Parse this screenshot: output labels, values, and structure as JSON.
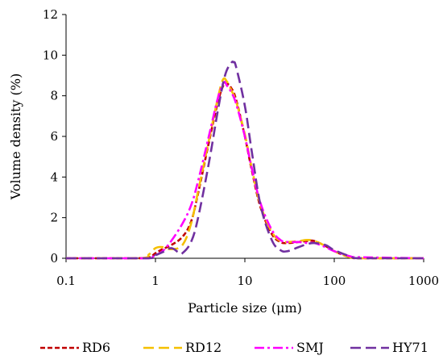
{
  "chart_data": {
    "type": "line",
    "title": "",
    "xlabel": "Particle size (μm)",
    "ylabel": "Volume density (%)",
    "x_scale": "log",
    "xlim": [
      0.1,
      1000
    ],
    "ylim": [
      0,
      12
    ],
    "x_ticks": [
      "0.1",
      "1",
      "10",
      "100",
      "1000"
    ],
    "y_ticks": [
      "0",
      "2",
      "4",
      "6",
      "8",
      "10",
      "12"
    ],
    "grid": false,
    "legend_position": "bottom",
    "series": [
      {
        "name": "RD6",
        "color": "#c00000",
        "dash": "dashed-short",
        "x": [
          0.1,
          0.6,
          0.85,
          1.0,
          1.2,
          1.5,
          2.0,
          2.5,
          3.0,
          4.0,
          5.0,
          5.8,
          6.3,
          7.0,
          8.0,
          10.0,
          12.0,
          15.0,
          20.0,
          25.0,
          30.0,
          40.0,
          50.0,
          60.0,
          80.0,
          100.0,
          150.0,
          200.0,
          1000.0
        ],
        "y": [
          0,
          0,
          0.05,
          0.25,
          0.45,
          0.65,
          1.05,
          1.8,
          3.2,
          5.8,
          7.7,
          8.55,
          8.6,
          8.4,
          7.8,
          6.0,
          4.3,
          2.5,
          1.2,
          0.8,
          0.75,
          0.8,
          0.85,
          0.85,
          0.6,
          0.35,
          0.05,
          0,
          0
        ]
      },
      {
        "name": "RD12",
        "color": "#f5c000",
        "dash": "dashed-long",
        "x": [
          0.1,
          0.65,
          0.85,
          1.0,
          1.2,
          1.5,
          2.0,
          2.5,
          3.0,
          4.0,
          5.0,
          5.7,
          6.3,
          7.0,
          8.0,
          10.0,
          12.0,
          15.0,
          20.0,
          25.0,
          30.0,
          40.0,
          50.0,
          60.0,
          80.0,
          100.0,
          150.0,
          200.0,
          1000.0
        ],
        "y": [
          0,
          0,
          0.2,
          0.5,
          0.55,
          0.45,
          0.65,
          1.7,
          3.3,
          5.9,
          7.9,
          8.8,
          8.7,
          8.3,
          7.7,
          6.1,
          4.4,
          2.6,
          1.3,
          0.85,
          0.8,
          0.85,
          0.9,
          0.85,
          0.6,
          0.35,
          0.05,
          0,
          0
        ]
      },
      {
        "name": "SMJ",
        "color": "#ff00ff",
        "dash": "dash-dot",
        "x": [
          0.1,
          0.7,
          0.9,
          1.0,
          1.2,
          1.5,
          2.0,
          2.5,
          3.0,
          4.0,
          5.0,
          5.8,
          6.3,
          7.0,
          8.0,
          10.0,
          12.0,
          15.0,
          20.0,
          25.0,
          30.0,
          40.0,
          50.0,
          60.0,
          80.0,
          100.0,
          150.0,
          200.0,
          1000.0
        ],
        "y": [
          0,
          0,
          0.05,
          0.15,
          0.35,
          0.85,
          1.7,
          2.6,
          3.8,
          6.1,
          7.9,
          8.65,
          8.5,
          8.2,
          7.6,
          6.0,
          4.4,
          2.7,
          1.4,
          0.9,
          0.8,
          0.8,
          0.75,
          0.75,
          0.55,
          0.35,
          0.1,
          0.05,
          0
        ]
      },
      {
        "name": "HY71",
        "color": "#7030a0",
        "dash": "dashed-long",
        "x": [
          0.1,
          0.8,
          1.0,
          1.2,
          1.5,
          1.8,
          2.0,
          2.5,
          3.0,
          4.0,
          5.0,
          6.0,
          7.0,
          7.5,
          8.0,
          10.0,
          12.0,
          15.0,
          20.0,
          25.0,
          30.0,
          40.0,
          50.0,
          60.0,
          80.0,
          100.0,
          150.0,
          200.0,
          1000.0
        ],
        "y": [
          0,
          0,
          0.15,
          0.3,
          0.5,
          0.3,
          0.25,
          0.8,
          2.0,
          4.8,
          7.3,
          9.0,
          9.6,
          9.65,
          9.4,
          7.5,
          5.2,
          2.6,
          0.9,
          0.4,
          0.35,
          0.55,
          0.7,
          0.75,
          0.65,
          0.4,
          0.1,
          0,
          0
        ]
      }
    ]
  }
}
